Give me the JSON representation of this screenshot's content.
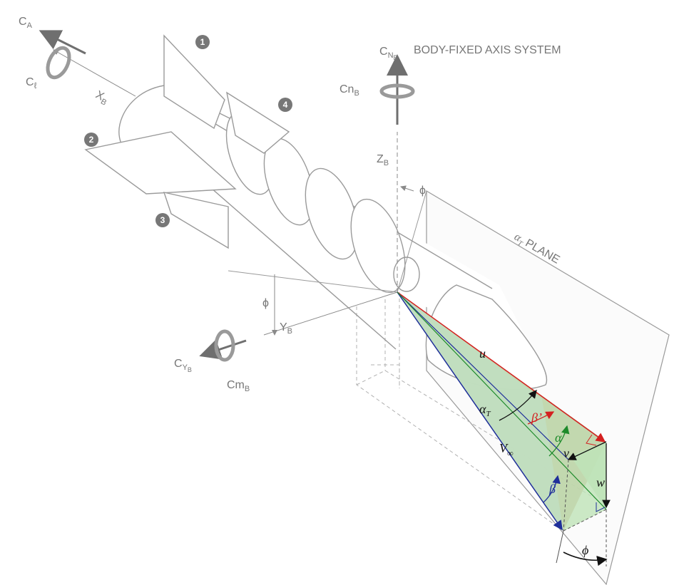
{
  "diagram": {
    "axis_system_title": "BODY-FIXED AXIS SYSTEM",
    "plane_label": "PLANE",
    "plane_symbol": "α",
    "plane_symbol_sub": "T",
    "axes": {
      "x": {
        "base": "X",
        "sub": "B"
      },
      "y": {
        "base": "Y",
        "sub": "B"
      },
      "z": {
        "base": "Z",
        "sub": "B"
      }
    },
    "coefficients": {
      "ca": {
        "base": "C",
        "sub": "A"
      },
      "cl": {
        "base": "C",
        "sub": "ℓ"
      },
      "cn": {
        "base": "C",
        "sub": "N",
        "subsub": "B"
      },
      "cnb": {
        "base": "Cn",
        "sub": "B"
      },
      "cy": {
        "base": "C",
        "sub": "Y",
        "subsub": "B"
      },
      "cmb": {
        "base": "Cm",
        "sub": "B"
      }
    },
    "fin_numbers": [
      "1",
      "2",
      "3",
      "4"
    ],
    "angles": {
      "phi": "ϕ",
      "phi_upper": "ϕ",
      "phi_side": "ϕ",
      "alpha": "α",
      "beta": "β",
      "beta_prime": "β’",
      "alpha_t": "α",
      "alpha_t_sub": "T"
    },
    "velocities": {
      "u": "u",
      "v": "v",
      "w": "w",
      "v_inf": "V",
      "v_inf_sub": "∞"
    },
    "colors": {
      "outline": "#9a9a9a",
      "red": "#d42020",
      "blue": "#1f2f9a",
      "green": "#1d8a2a",
      "brown_fill": "#b98f6a",
      "blue_fill": "#c8cdf0",
      "green_fill": "#bfe3b8",
      "black": "#111111"
    }
  }
}
